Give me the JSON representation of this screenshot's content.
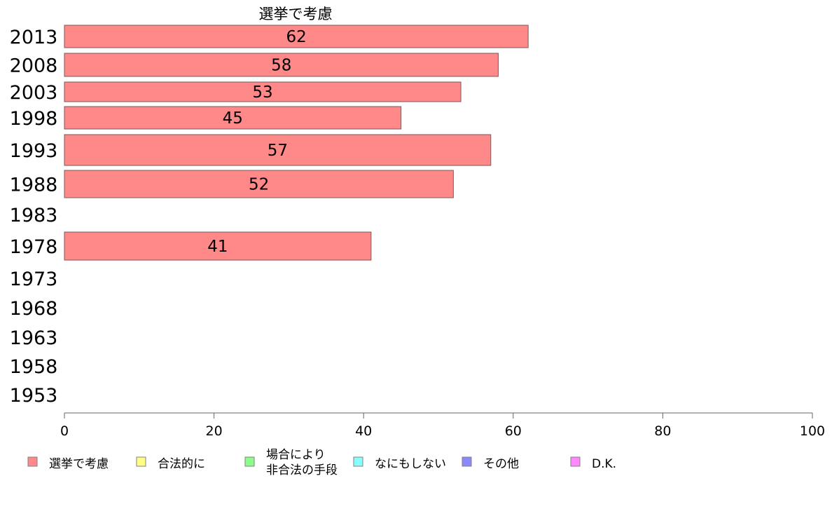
{
  "chart_data": {
    "type": "bar",
    "orientation": "horizontal",
    "title": "選挙で考慮",
    "categories": [
      "2013",
      "2008",
      "2003",
      "1998",
      "1993",
      "1988",
      "1983",
      "1978",
      "1973",
      "1968",
      "1963",
      "1958",
      "1953"
    ],
    "series": [
      {
        "name": "選挙で考慮",
        "color": "#ff8888",
        "values": [
          62,
          58,
          53,
          45,
          57,
          52,
          null,
          41,
          null,
          null,
          null,
          null,
          null
        ]
      }
    ],
    "xlim": [
      0,
      100
    ],
    "xticks": [
      0,
      20,
      40,
      60,
      80,
      100
    ],
    "xlabel": "",
    "ylabel": "",
    "grid": false,
    "legend_position": "bottom",
    "legend": [
      {
        "label": "選挙で考慮",
        "color": "#ff8888"
      },
      {
        "label": "合法的に",
        "color": "#ffff88"
      },
      {
        "label": "場合により\n非合法の手段",
        "color": "#88ff88"
      },
      {
        "label": "なにもしない",
        "color": "#88ffff"
      },
      {
        "label": "その他",
        "color": "#8888ff"
      },
      {
        "label": "D.K.",
        "color": "#ff88ff"
      }
    ]
  }
}
